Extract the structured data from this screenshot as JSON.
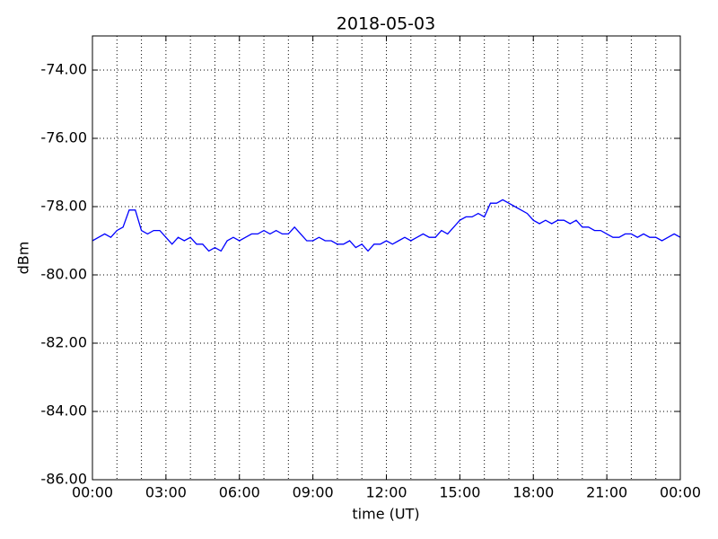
{
  "chart_data": {
    "type": "line",
    "title": "2018-05-03",
    "x_label": "time (UT)",
    "y_label": "dBm",
    "grid": true,
    "xlim": [
      0,
      24
    ],
    "ylim": [
      -86,
      -73
    ],
    "xticks": [
      {
        "value": 0,
        "label": "00:00"
      },
      {
        "value": 3,
        "label": "03:00"
      },
      {
        "value": 6,
        "label": "06:00"
      },
      {
        "value": 9,
        "label": "09:00"
      },
      {
        "value": 12,
        "label": "12:00"
      },
      {
        "value": 15,
        "label": "15:00"
      },
      {
        "value": 18,
        "label": "18:00"
      },
      {
        "value": 21,
        "label": "21:00"
      },
      {
        "value": 24,
        "label": "00:00"
      }
    ],
    "x_grid_ticks": [
      0,
      1,
      2,
      3,
      4,
      5,
      6,
      7,
      8,
      9,
      10,
      11,
      12,
      13,
      14,
      15,
      16,
      17,
      18,
      19,
      20,
      21,
      22,
      23,
      24
    ],
    "yticks": [
      {
        "value": -86,
        "label": "-86.00"
      },
      {
        "value": -84,
        "label": "-84.00"
      },
      {
        "value": -82,
        "label": "-82.00"
      },
      {
        "value": -80,
        "label": "-80.00"
      },
      {
        "value": -78,
        "label": "-78.00"
      },
      {
        "value": -76,
        "label": "-76.00"
      },
      {
        "value": -74,
        "label": "-74.00"
      }
    ],
    "x": [
      0,
      0.25,
      0.5,
      0.75,
      1,
      1.25,
      1.5,
      1.75,
      2,
      2.25,
      2.5,
      2.75,
      3,
      3.25,
      3.5,
      3.75,
      4,
      4.25,
      4.5,
      4.75,
      5,
      5.25,
      5.5,
      5.75,
      6,
      6.25,
      6.5,
      6.75,
      7,
      7.25,
      7.5,
      7.75,
      8,
      8.25,
      8.5,
      8.75,
      9,
      9.25,
      9.5,
      9.75,
      10,
      10.25,
      10.5,
      10.75,
      11,
      11.25,
      11.5,
      11.75,
      12,
      12.25,
      12.5,
      12.75,
      13,
      13.25,
      13.5,
      13.75,
      14,
      14.25,
      14.5,
      14.75,
      15,
      15.25,
      15.5,
      15.75,
      16,
      16.25,
      16.5,
      16.75,
      17,
      17.25,
      17.5,
      17.75,
      18,
      18.25,
      18.5,
      18.75,
      19,
      19.25,
      19.5,
      19.75,
      20,
      20.25,
      20.5,
      20.75,
      21,
      21.25,
      21.5,
      21.75,
      22,
      22.25,
      22.5,
      22.75,
      23,
      23.25,
      23.5,
      23.75,
      24
    ],
    "series": [
      {
        "color": "#0000ff",
        "values": [
          -79.0,
          -78.9,
          -78.8,
          -78.9,
          -78.7,
          -78.6,
          -78.1,
          -78.1,
          -78.7,
          -78.8,
          -78.7,
          -78.7,
          -78.9,
          -79.1,
          -78.9,
          -79.0,
          -78.9,
          -79.1,
          -79.1,
          -79.3,
          -79.2,
          -79.3,
          -79.0,
          -78.9,
          -79.0,
          -78.9,
          -78.8,
          -78.8,
          -78.7,
          -78.8,
          -78.7,
          -78.8,
          -78.8,
          -78.6,
          -78.8,
          -79.0,
          -79.0,
          -78.9,
          -79.0,
          -79.0,
          -79.1,
          -79.1,
          -79.0,
          -79.2,
          -79.1,
          -79.3,
          -79.1,
          -79.1,
          -79.0,
          -79.1,
          -79.0,
          -78.9,
          -79.0,
          -78.9,
          -78.8,
          -78.9,
          -78.9,
          -78.7,
          -78.8,
          -78.6,
          -78.4,
          -78.3,
          -78.3,
          -78.2,
          -78.3,
          -77.9,
          -77.9,
          -77.8,
          -77.9,
          -78.0,
          -78.1,
          -78.2,
          -78.4,
          -78.5,
          -78.4,
          -78.5,
          -78.4,
          -78.4,
          -78.5,
          -78.4,
          -78.6,
          -78.6,
          -78.7,
          -78.7,
          -78.8,
          -78.9,
          -78.9,
          -78.8,
          -78.8,
          -78.9,
          -78.8,
          -78.9,
          -78.9,
          -79.0,
          -78.9,
          -78.8,
          -78.9
        ]
      }
    ]
  }
}
